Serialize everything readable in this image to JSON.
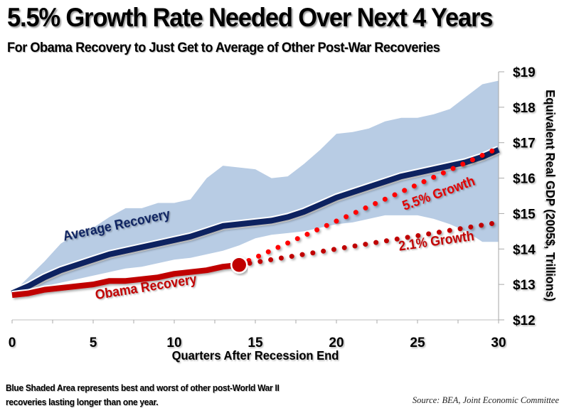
{
  "chart_data": {
    "type": "line",
    "title": "5.5% Growth Rate Needed Over Next 4 Years",
    "subtitle": "For Obama Recovery to Just Get to Average of Other Post-War Recoveries",
    "xlabel": "Quarters After Recession End",
    "ylabel": "Equivalent Real GDP (2005$, Trillions)",
    "xlim": [
      0,
      30
    ],
    "ylim": [
      12,
      19
    ],
    "x_ticks": [
      "0",
      "5",
      "10",
      "15",
      "20",
      "25",
      "30"
    ],
    "x_tick_values": [
      0,
      5,
      10,
      15,
      20,
      25,
      30
    ],
    "y_ticks": [
      "$12",
      "$13",
      "$14",
      "$15",
      "$16",
      "$17",
      "$18",
      "$19"
    ],
    "y_tick_values": [
      12,
      13,
      14,
      15,
      16,
      17,
      18,
      19
    ],
    "y_axis_side": "right",
    "grid": false,
    "band": {
      "name": "Range of other post-WWII recoveries (best and worst)",
      "color": "#b8cce4",
      "x": [
        0,
        1,
        2,
        3,
        4,
        5,
        6,
        7,
        8,
        9,
        10,
        11,
        12,
        13,
        14,
        15,
        16,
        17,
        18,
        19,
        20,
        21,
        22,
        23,
        24,
        25,
        26,
        27,
        28,
        29,
        30
      ],
      "upper": [
        12.75,
        13.2,
        13.65,
        14.15,
        14.45,
        14.6,
        14.9,
        15.15,
        15.15,
        15.3,
        15.3,
        15.4,
        16.0,
        16.35,
        16.3,
        16.25,
        16.0,
        16.05,
        16.4,
        16.8,
        17.25,
        17.3,
        17.4,
        17.6,
        17.7,
        17.7,
        17.8,
        17.95,
        18.3,
        18.65,
        18.75
      ],
      "lower": [
        12.75,
        12.85,
        12.95,
        13.05,
        13.15,
        13.25,
        13.35,
        13.45,
        13.5,
        13.6,
        13.7,
        13.75,
        13.85,
        13.95,
        14.1,
        14.3,
        14.4,
        14.45,
        14.5,
        14.6,
        14.7,
        14.75,
        14.85,
        14.95,
        14.95,
        14.95,
        14.85,
        14.7,
        14.5,
        14.2,
        14.2
      ]
    },
    "series": [
      {
        "name": "Average Recovery",
        "color": "#0d2460",
        "x": [
          0,
          1,
          2,
          3,
          4,
          5,
          6,
          7,
          8,
          9,
          10,
          11,
          12,
          13,
          14,
          15,
          16,
          17,
          18,
          19,
          20,
          21,
          22,
          23,
          24,
          25,
          26,
          27,
          28,
          29,
          30
        ],
        "values": [
          12.75,
          12.95,
          13.2,
          13.4,
          13.55,
          13.7,
          13.85,
          13.95,
          14.05,
          14.15,
          14.25,
          14.35,
          14.5,
          14.65,
          14.7,
          14.75,
          14.8,
          14.9,
          15.05,
          15.25,
          15.45,
          15.6,
          15.75,
          15.9,
          16.05,
          16.15,
          16.25,
          16.35,
          16.45,
          16.6,
          16.8
        ]
      },
      {
        "name": "Obama Recovery",
        "color": "#c00000",
        "x": [
          0,
          1,
          2,
          3,
          4,
          5,
          6,
          7,
          8,
          9,
          10,
          11,
          12,
          13,
          14
        ],
        "values": [
          12.7,
          12.75,
          12.85,
          12.9,
          12.95,
          13.0,
          13.1,
          13.1,
          13.15,
          13.2,
          13.3,
          13.35,
          13.4,
          13.5,
          13.55
        ]
      },
      {
        "name": "5.5% Growth",
        "color": "#ff0000",
        "style": "dotted",
        "x": [
          14,
          30
        ],
        "values": [
          13.55,
          16.85
        ]
      },
      {
        "name": "2.1% Growth",
        "color": "#c00000",
        "style": "dotted",
        "x": [
          14,
          30
        ],
        "values": [
          13.55,
          14.75
        ]
      }
    ],
    "marker": {
      "label": "Current point",
      "x": 14,
      "value": 13.55
    },
    "annotations": [
      {
        "text": "Average Recovery",
        "x": 6.5,
        "value": 14.55,
        "color": "#0d2460",
        "rotate": -12
      },
      {
        "text": "Obama Recovery",
        "x": 8.3,
        "value": 12.8,
        "color": "#c00000",
        "rotate": -9
      },
      {
        "text": "5.5% Growth",
        "x": 26.4,
        "value": 15.45,
        "color": "#e00000",
        "rotate": -20
      },
      {
        "text": "2.1% Growth",
        "x": 26.2,
        "value": 14.1,
        "color": "#c00000",
        "rotate": -8
      }
    ]
  },
  "footnote": {
    "line1": "Blue Shaded Area represents  best and worst of other post-World War II",
    "line2": "recoveries  lasting longer than one year."
  },
  "source": "Source:  BEA, Joint Economic Committee"
}
